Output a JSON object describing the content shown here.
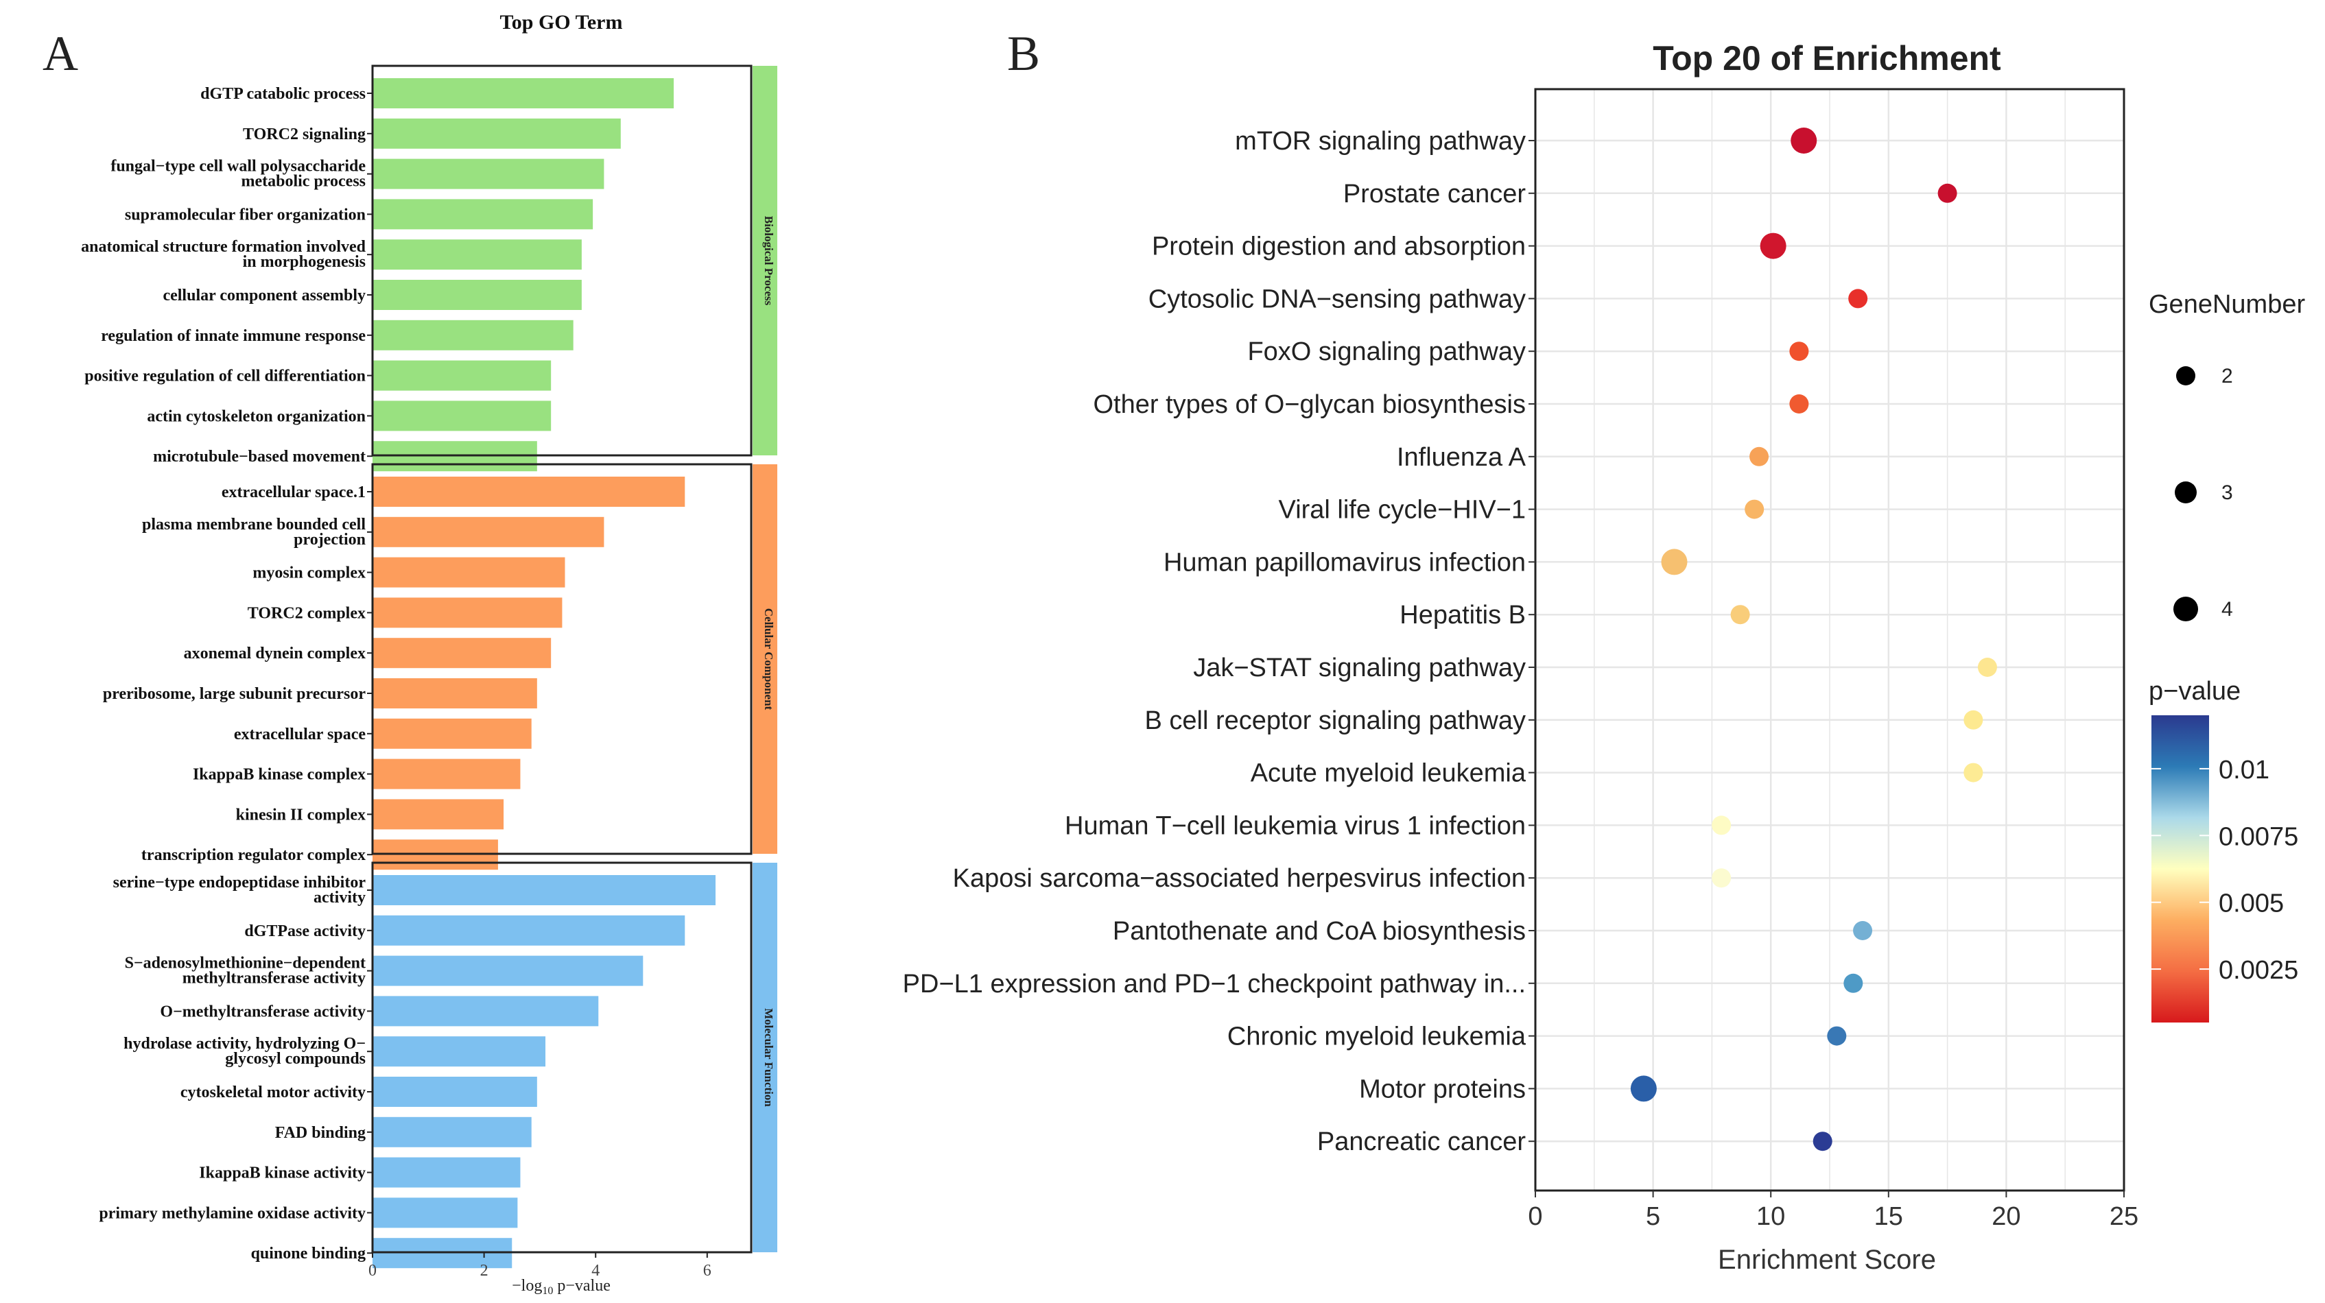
{
  "chart_data": [
    {
      "panel_label": "A",
      "type": "bar",
      "orientation": "horizontal",
      "title": "Top GO Term",
      "xlabel": "−log",
      "xlabel_sub": "10",
      "xlabel_suffix": " p−value",
      "xlim": [
        0,
        6.8
      ],
      "xticks": [
        "0",
        "2",
        "4",
        "6"
      ],
      "xtick_values": [
        0,
        2,
        4,
        6
      ],
      "groups": [
        {
          "name": "Biological Process",
          "color": "#99e180",
          "categories": [
            [
              "dGTP catabolic process"
            ],
            [
              "TORC2 signaling"
            ],
            [
              "fungal−type cell wall polysaccharide",
              "metabolic process"
            ],
            [
              "supramolecular fiber organization"
            ],
            [
              "anatomical structure formation involved",
              "in morphogenesis"
            ],
            [
              "cellular component assembly"
            ],
            [
              "regulation of innate immune response"
            ],
            [
              "positive regulation of cell differentiation"
            ],
            [
              "actin cytoskeleton organization"
            ],
            [
              "microtubule−based movement"
            ]
          ],
          "values": [
            5.4,
            4.45,
            4.15,
            3.95,
            3.75,
            3.75,
            3.6,
            3.2,
            3.2,
            2.95
          ]
        },
        {
          "name": "Cellular Component",
          "color": "#fd9d5c",
          "categories": [
            [
              "extracellular space.1"
            ],
            [
              "plasma membrane bounded cell",
              "projection"
            ],
            [
              "myosin complex"
            ],
            [
              "TORC2 complex"
            ],
            [
              "axonemal dynein complex"
            ],
            [
              "preribosome, large subunit precursor"
            ],
            [
              "extracellular space"
            ],
            [
              "IkappaB kinase complex"
            ],
            [
              "kinesin II complex"
            ],
            [
              "transcription regulator complex"
            ]
          ],
          "values": [
            5.6,
            4.15,
            3.45,
            3.4,
            3.2,
            2.95,
            2.85,
            2.65,
            2.35,
            2.25
          ]
        },
        {
          "name": "Molecular Function",
          "color": "#7dc0f0",
          "categories": [
            [
              "serine−type endopeptidase inhibitor",
              "activity"
            ],
            [
              "dGTPase activity"
            ],
            [
              "S−adenosylmethionine−dependent",
              "methyltransferase activity"
            ],
            [
              "O−methyltransferase activity"
            ],
            [
              "hydrolase activity, hydrolyzing O−",
              "glycosyl compounds"
            ],
            [
              "cytoskeletal motor activity"
            ],
            [
              "FAD binding"
            ],
            [
              "IkappaB kinase activity"
            ],
            [
              "primary methylamine oxidase activity"
            ],
            [
              "quinone binding"
            ]
          ],
          "values": [
            6.15,
            5.6,
            4.85,
            4.05,
            3.1,
            2.95,
            2.85,
            2.65,
            2.6,
            2.5
          ]
        }
      ]
    },
    {
      "panel_label": "B",
      "type": "scatter",
      "title": "Top 20 of  Enrichment",
      "xlabel": "Enrichment Score",
      "ylabel": "",
      "xlim": [
        0,
        25
      ],
      "xticks": [
        "0",
        "5",
        "10",
        "15",
        "20",
        "25"
      ],
      "xtick_values": [
        0,
        5,
        10,
        15,
        20,
        25
      ],
      "grid": true,
      "categories": [
        "mTOR signaling pathway",
        "Prostate cancer",
        "Protein digestion and absorption",
        "Cytosolic DNA−sensing pathway",
        "FoxO signaling pathway",
        "Other types of O−glycan biosynthesis",
        "Influenza A",
        "Viral life cycle−HIV−1",
        "Human papillomavirus infection",
        "Hepatitis B",
        "Jak−STAT signaling pathway",
        "B cell receptor signaling pathway",
        "Acute myeloid leukemia",
        "Human T−cell leukemia virus 1 infection",
        "Kaposi sarcoma−associated herpesvirus infection",
        "Pantothenate and CoA biosynthesis",
        "PD−L1 expression and PD−1 checkpoint pathway in...",
        "Chronic myeloid leukemia",
        "Motor proteins",
        "Pancreatic cancer"
      ],
      "x": [
        11.4,
        17.5,
        10.1,
        13.7,
        11.2,
        11.2,
        9.5,
        9.3,
        5.9,
        8.7,
        19.2,
        18.6,
        18.6,
        7.9,
        7.9,
        13.9,
        13.5,
        12.8,
        4.6,
        12.2
      ],
      "gene_number": [
        3,
        2,
        3,
        2,
        2,
        2,
        2,
        2,
        3,
        2,
        2,
        2,
        2,
        2,
        2,
        2,
        2,
        2,
        3,
        2
      ],
      "colors": [
        "#c8102e",
        "#c8102e",
        "#d0162d",
        "#e8302b",
        "#f0512c",
        "#f05a30",
        "#f7a257",
        "#f8b565",
        "#f6c070",
        "#f9cd7a",
        "#fde690",
        "#fde990",
        "#fdeb94",
        "#fefbc4",
        "#fcfbd0",
        "#74b0d4",
        "#4e9ac6",
        "#3978b5",
        "#2a5fa8",
        "#2b3c94"
      ],
      "legend_size": {
        "title": "GeneNumber",
        "labels": [
          "2",
          "3",
          "4"
        ],
        "values": [
          2,
          3,
          4
        ]
      },
      "legend_color": {
        "title": "p−value",
        "labels": [
          "0.01",
          "0.0075",
          "0.005",
          "0.0025"
        ],
        "values": [
          0.01,
          0.0075,
          0.005,
          0.0025
        ],
        "range": [
          0.0005,
          0.012
        ],
        "gradient_top_to_bottom": [
          "#2b3a8f",
          "#2c7bb6",
          "#abd9e9",
          "#ffffbf",
          "#fdae61",
          "#f46d43",
          "#d7191c"
        ]
      }
    }
  ]
}
